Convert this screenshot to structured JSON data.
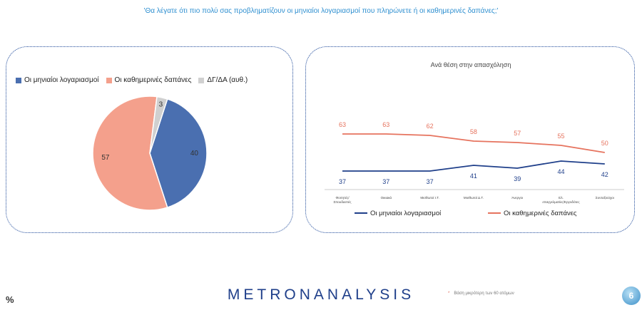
{
  "header": {
    "question": "'Θα λέγατε ότι πιο πολύ σας προβληματίζουν οι μηνιαίοι λογαριασμοί που πληρώνετε ή οι καθημερινές δαπάνες;'"
  },
  "footer": {
    "percent_sign": "%",
    "logo_text": "METRONANALYSIS",
    "note_star": "*",
    "note_text": "Βάση μικρότερη των 60 ατόμων",
    "page_number": "6"
  },
  "colors": {
    "monthly": "#4a6fb0",
    "daily": "#f4a08c",
    "dk": "#d0d0d0",
    "line_monthly": "#1f3f8a",
    "line_daily": "#e6735e"
  },
  "chart_data": [
    {
      "type": "pie",
      "title": "",
      "legend_position": "top",
      "slices": [
        {
          "name": "Οι μηνιαίοι λογαριασμοί",
          "value": 40
        },
        {
          "name": "Οι καθημερινές δαπάνες",
          "value": 57
        },
        {
          "name": "ΔΓ/ΔΑ (αυθ.)",
          "value": 3
        }
      ]
    },
    {
      "type": "line",
      "title": "Ανά θέση στην απασχόληση",
      "legend_position": "bottom",
      "grid": false,
      "categories": [
        "Φοιτητές/ Σπουδαστές",
        "Οικιακά",
        "Μισθωτοί Ι.Τ.",
        "Μισθωτοί Δ.Τ.",
        "Άνεργοι",
        "Ελ. επαγγελματίες/Εργοδότες",
        "Συνταξιούχοι"
      ],
      "ylim": [
        0,
        100
      ],
      "series": [
        {
          "name": "Οι μηνιαίοι λογαριασμοί",
          "values": [
            37,
            37,
            37,
            41,
            39,
            44,
            42
          ]
        },
        {
          "name": "Οι καθημερινές δαπάνες",
          "values": [
            63,
            63,
            62,
            58,
            57,
            55,
            50
          ]
        }
      ]
    }
  ]
}
